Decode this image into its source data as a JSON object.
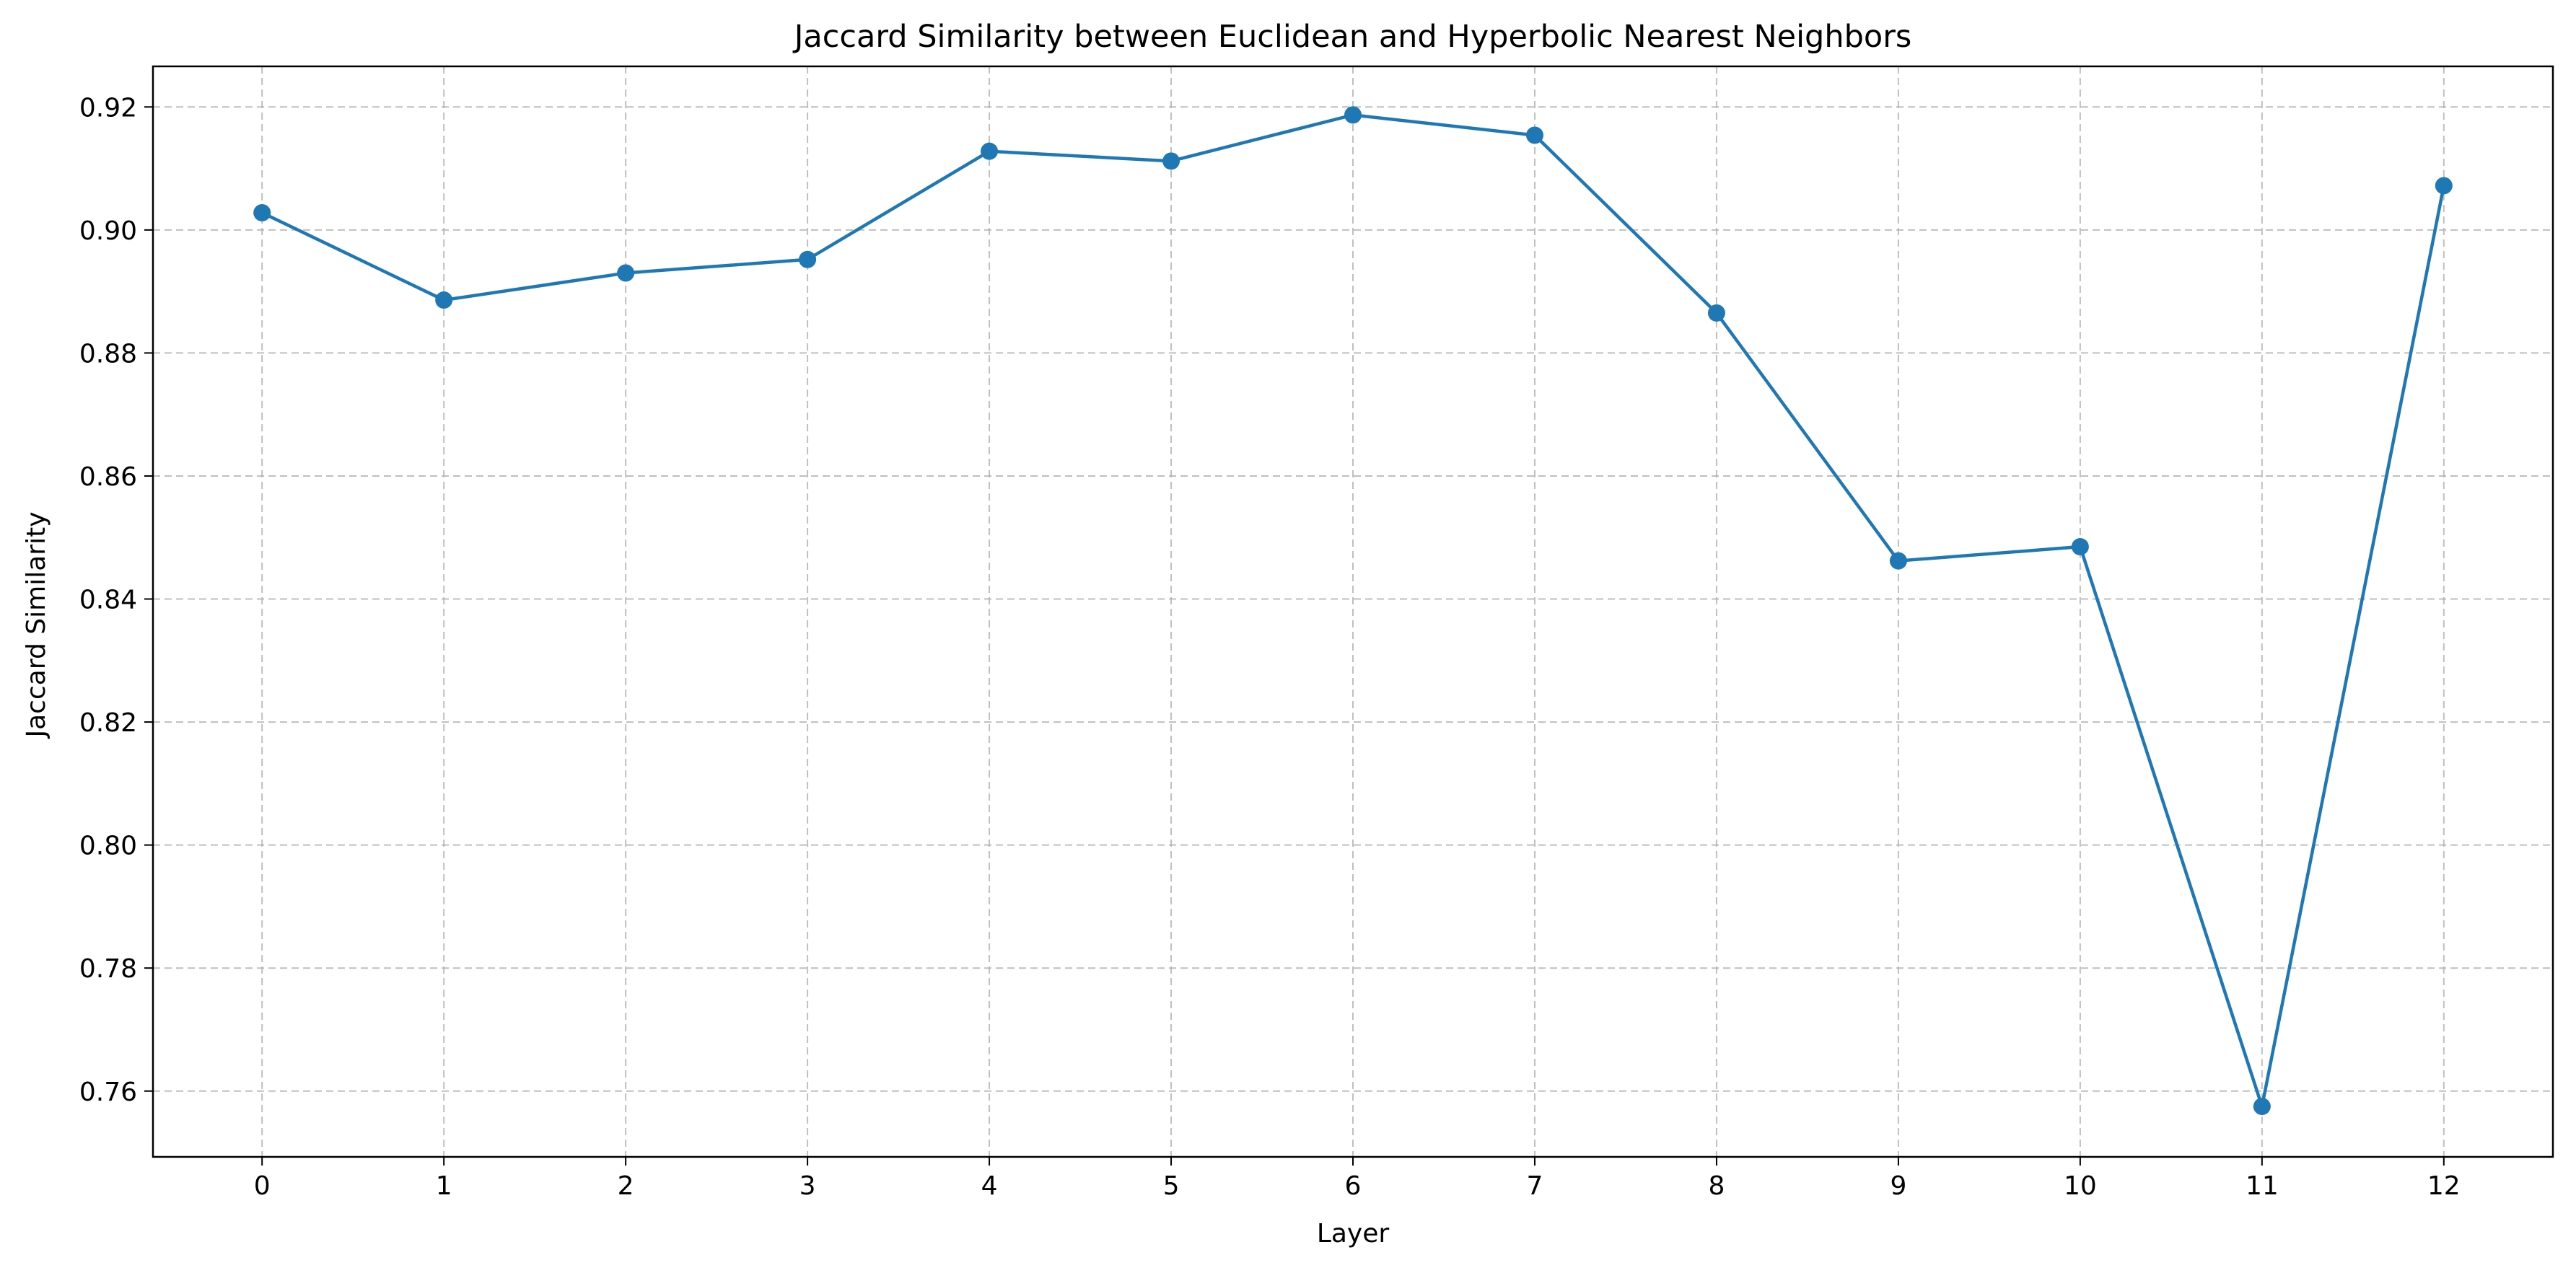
{
  "chart_data": {
    "type": "line",
    "title": "Jaccard Similarity between Euclidean and Hyperbolic Nearest Neighbors",
    "xlabel": "Layer",
    "ylabel": "Jaccard Similarity",
    "x": [
      0,
      1,
      2,
      3,
      4,
      5,
      6,
      7,
      8,
      9,
      10,
      11,
      12
    ],
    "series": [
      {
        "values": [
          0.9028,
          0.8886,
          0.893,
          0.8952,
          0.9128,
          0.9112,
          0.9187,
          0.9154,
          0.8865,
          0.8462,
          0.8485,
          0.7575,
          0.9072
        ],
        "color": "#1f77b4",
        "marker": "circle"
      }
    ],
    "xlim": [
      -0.6,
      12.6
    ],
    "ylim": [
      0.7493,
      0.9266
    ],
    "xticks": [
      "0",
      "1",
      "2",
      "3",
      "4",
      "5",
      "6",
      "7",
      "8",
      "9",
      "10",
      "11",
      "12"
    ],
    "yticks": [
      "0.76",
      "0.78",
      "0.80",
      "0.82",
      "0.84",
      "0.86",
      "0.88",
      "0.90",
      "0.92"
    ],
    "grid": true,
    "grid_style": "dashed",
    "legend": "none"
  }
}
